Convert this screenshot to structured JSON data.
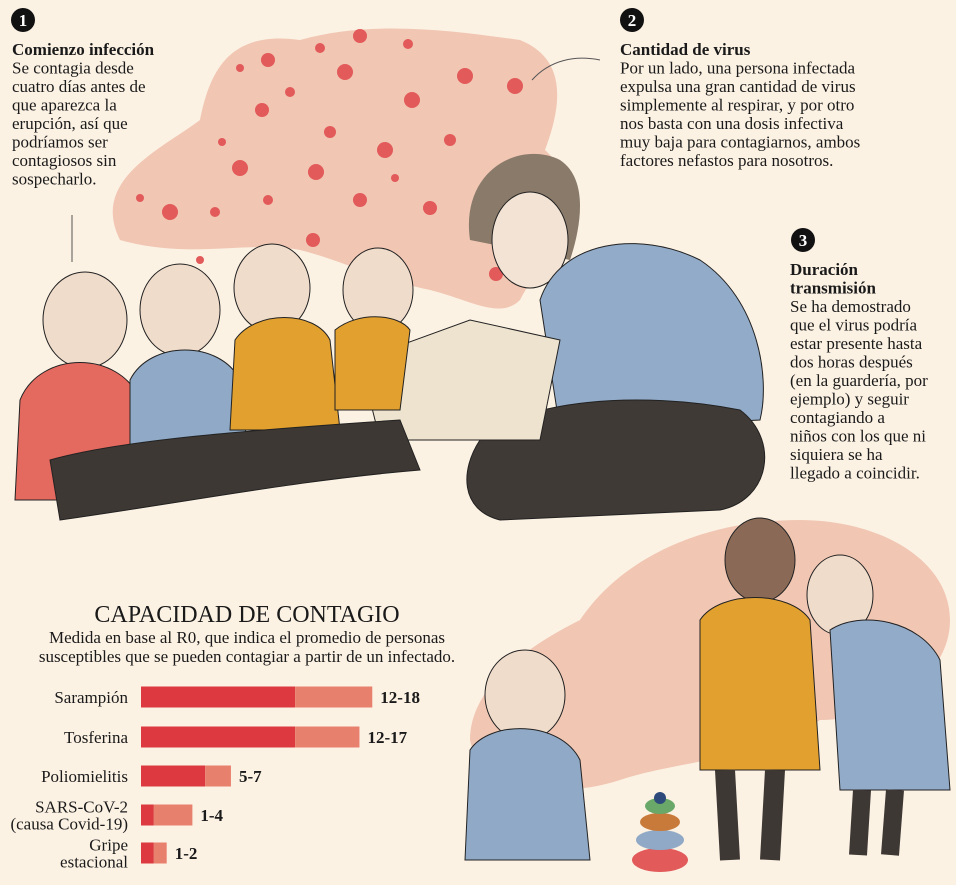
{
  "sections": [
    {
      "number": "1",
      "title": [
        "Comienzo infección"
      ],
      "body": [
        "Se contagia desde",
        "cuatro días antes de",
        "que aparezca la",
        "erupción, así que",
        "podríamos ser",
        "contagiosos sin",
        "sospecharlo."
      ]
    },
    {
      "number": "2",
      "title": [
        "Cantidad de virus"
      ],
      "body": [
        "Por un lado, una persona infectada",
        "expulsa una gran cantidad de virus",
        "simplemente al respirar, y por otro",
        "nos basta con una dosis infectiva",
        "muy baja para contagiarnos, ambos",
        "factores nefastos para nosotros."
      ]
    },
    {
      "number": "3",
      "title": [
        "Duración",
        "transmisión"
      ],
      "body": [
        "Se ha demostrado",
        "que el virus podría",
        "estar presente hasta",
        "dos horas después",
        "(en la guardería, por",
        "ejemplo) y seguir",
        "contagiando a",
        "niños con los que ni",
        "siquiera se ha",
        "llegado a coincidir."
      ]
    }
  ],
  "chart_data": {
    "type": "range_bar",
    "title": "CAPACIDAD DE CONTAGIO",
    "subtitle": [
      "Medida en base al R0, que indica el promedio de personas",
      "susceptibles que se pueden contagiar a partir de un infectado."
    ],
    "categories": [
      [
        "Sarampión"
      ],
      [
        "Tosferina"
      ],
      [
        "Poliomielitis"
      ],
      [
        "SARS-CoV-2",
        "(causa Covid-19)"
      ],
      [
        "Gripe",
        "estacional"
      ]
    ],
    "low": [
      12,
      12,
      5,
      1,
      1
    ],
    "high": [
      18,
      17,
      7,
      4,
      2
    ],
    "value_labels": [
      "12-18",
      "12-17",
      "5-7",
      "1-4",
      "1-2"
    ],
    "colors": [
      "#dc3a40",
      "#e8806e"
    ]
  }
}
